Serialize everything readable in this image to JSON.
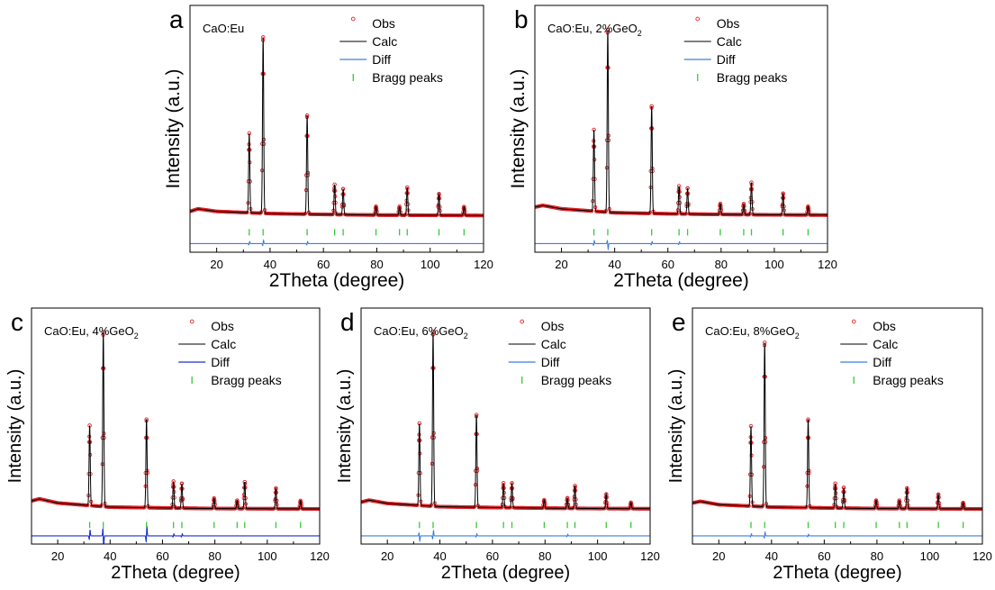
{
  "colors": {
    "obs": "#d9262a",
    "calc": "#000000",
    "diff_light": "#3b7fe0",
    "diff_dark": "#1a2fd6",
    "bragg": "#39c939"
  },
  "chart_data": [
    {
      "panel_label": "a",
      "type": "line",
      "sample": "CaO:Eu",
      "sample_suffix": "",
      "xlabel": "2Theta (degree)",
      "ylabel": "Intensity (a.u.)",
      "xlim": [
        10,
        120
      ],
      "x_ticks": [
        "20",
        "40",
        "60",
        "80",
        "100",
        "120"
      ],
      "y_ticks_shown": false,
      "legend": [
        "Obs",
        "Calc",
        "Diff",
        "Bragg peaks"
      ],
      "legend_position": "top-right",
      "diff_color": "diff_light",
      "background": [
        [
          10,
          4.0
        ],
        [
          13,
          5.2
        ],
        [
          20,
          4.0
        ],
        [
          40,
          3.0
        ],
        [
          60,
          2.6
        ],
        [
          80,
          2.3
        ],
        [
          100,
          2.2
        ],
        [
          120,
          2.1
        ]
      ],
      "peaks": [
        [
          32.2,
          37
        ],
        [
          37.4,
          82
        ],
        [
          53.9,
          46
        ],
        [
          64.2,
          14
        ],
        [
          67.4,
          12
        ],
        [
          79.7,
          4
        ],
        [
          88.5,
          4
        ],
        [
          91.4,
          13
        ],
        [
          103.3,
          10
        ],
        [
          112.7,
          4
        ]
      ],
      "bragg_positions": [
        32.2,
        37.4,
        53.9,
        64.2,
        67.4,
        79.7,
        88.5,
        91.4,
        103.3,
        112.7
      ],
      "diff_spikes": [
        [
          32.2,
          1
        ],
        [
          37.4,
          1.6
        ],
        [
          53.9,
          1
        ]
      ],
      "ylim": [
        -15,
        100
      ]
    },
    {
      "panel_label": "b",
      "type": "line",
      "sample": "CaO:Eu, 2%GeO",
      "sample_suffix": "2",
      "xlabel": "2Theta (degree)",
      "ylabel": "Intensity (a.u.)",
      "xlim": [
        10,
        120
      ],
      "x_ticks": [
        "20",
        "40",
        "60",
        "80",
        "100",
        "120"
      ],
      "y_ticks_shown": false,
      "legend": [
        "Obs",
        "Calc",
        "Diff",
        "Bragg peaks"
      ],
      "legend_position": "top-right",
      "diff_color": "diff_light",
      "background": [
        [
          10,
          6.0
        ],
        [
          13,
          6.8
        ],
        [
          20,
          5.2
        ],
        [
          40,
          3.4
        ],
        [
          60,
          2.9
        ],
        [
          80,
          2.6
        ],
        [
          100,
          2.4
        ],
        [
          120,
          2.3
        ]
      ],
      "peaks": [
        [
          32.2,
          38
        ],
        [
          37.4,
          85
        ],
        [
          53.9,
          50
        ],
        [
          64.2,
          13
        ],
        [
          67.4,
          12
        ],
        [
          79.7,
          5
        ],
        [
          88.5,
          5
        ],
        [
          91.4,
          15
        ],
        [
          103.3,
          10
        ],
        [
          112.7,
          4
        ]
      ],
      "bragg_positions": [
        32.2,
        37.4,
        53.9,
        64.2,
        67.4,
        79.7,
        88.5,
        91.4,
        103.3,
        112.7
      ],
      "diff_spikes": [
        [
          32.2,
          1.4
        ],
        [
          37.4,
          -2.5
        ],
        [
          53.9,
          1
        ],
        [
          64.2,
          0.8
        ]
      ],
      "ylim": [
        -15,
        100
      ]
    },
    {
      "panel_label": "c",
      "type": "line",
      "sample": "CaO:Eu, 4%GeO",
      "sample_suffix": "2",
      "xlabel": "2Theta (degree)",
      "ylabel": "Intensity (a.u.)",
      "xlim": [
        10,
        120
      ],
      "x_ticks": [
        "20",
        "40",
        "60",
        "80",
        "100",
        "120"
      ],
      "y_ticks_shown": false,
      "legend": [
        "Obs",
        "Calc",
        "Diff",
        "Bragg peaks"
      ],
      "legend_position": "top-right",
      "diff_color": "diff_dark",
      "background": [
        [
          10,
          6.0
        ],
        [
          13,
          7.0
        ],
        [
          20,
          5.0
        ],
        [
          40,
          3.0
        ],
        [
          60,
          2.6
        ],
        [
          80,
          2.3
        ],
        [
          100,
          2.2
        ],
        [
          120,
          2.1
        ]
      ],
      "peaks": [
        [
          32.2,
          39
        ],
        [
          37.4,
          85
        ],
        [
          53.9,
          43
        ],
        [
          64.2,
          13
        ],
        [
          67.4,
          12
        ],
        [
          79.7,
          5
        ],
        [
          88.5,
          4
        ],
        [
          91.4,
          13
        ],
        [
          103.3,
          10
        ],
        [
          112.7,
          4
        ]
      ],
      "bragg_positions": [
        32.2,
        37.4,
        53.9,
        64.2,
        67.4,
        79.7,
        88.5,
        91.4,
        103.3,
        112.7
      ],
      "diff_spikes": [
        [
          32.2,
          3
        ],
        [
          37.4,
          -6
        ],
        [
          53.9,
          5
        ],
        [
          64.2,
          1
        ],
        [
          67.4,
          1
        ]
      ],
      "ylim": [
        -15,
        100
      ]
    },
    {
      "panel_label": "d",
      "type": "line",
      "sample": "CaO:Eu, 6%GeO",
      "sample_suffix": "2",
      "xlabel": "2Theta (degree)",
      "ylabel": "Intensity (a.u.)",
      "xlim": [
        10,
        120
      ],
      "x_ticks": [
        "20",
        "40",
        "60",
        "80",
        "100",
        "120"
      ],
      "y_ticks_shown": false,
      "legend": [
        "Obs",
        "Calc",
        "Diff",
        "Bragg peaks"
      ],
      "legend_position": "top-right",
      "diff_color": "diff_light",
      "background": [
        [
          10,
          5.4
        ],
        [
          13,
          6.4
        ],
        [
          20,
          4.8
        ],
        [
          40,
          3.2
        ],
        [
          60,
          2.8
        ],
        [
          80,
          2.5
        ],
        [
          100,
          2.3
        ],
        [
          120,
          2.2
        ]
      ],
      "peaks": [
        [
          32.2,
          40
        ],
        [
          37.4,
          85
        ],
        [
          53.9,
          45
        ],
        [
          64.2,
          12
        ],
        [
          67.4,
          12
        ],
        [
          79.7,
          4
        ],
        [
          88.5,
          5
        ],
        [
          91.4,
          11
        ],
        [
          103.3,
          7
        ],
        [
          112.7,
          3
        ]
      ],
      "bragg_positions": [
        32.2,
        37.4,
        53.9,
        64.2,
        67.4,
        79.7,
        88.5,
        91.4,
        103.3,
        112.7
      ],
      "diff_spikes": [
        [
          32.2,
          -2.5
        ],
        [
          37.4,
          2.5
        ],
        [
          53.9,
          1
        ],
        [
          88.5,
          0.8
        ]
      ],
      "ylim": [
        -15,
        100
      ]
    },
    {
      "panel_label": "e",
      "type": "line",
      "sample": "CaO:Eu, 8%GeO",
      "sample_suffix": "2",
      "xlabel": "2Theta (degree)",
      "ylabel": "Intensity (a.u.)",
      "xlim": [
        10,
        120
      ],
      "x_ticks": [
        "20",
        "40",
        "60",
        "80",
        "100",
        "120"
      ],
      "y_ticks_shown": false,
      "legend": [
        "Obs",
        "Calc",
        "Diff",
        "Bragg peaks"
      ],
      "legend_position": "top-right",
      "diff_color": "diff_light",
      "background": [
        [
          10,
          5.0
        ],
        [
          13,
          5.8
        ],
        [
          20,
          4.2
        ],
        [
          40,
          3.0
        ],
        [
          60,
          2.6
        ],
        [
          80,
          2.3
        ],
        [
          100,
          2.2
        ],
        [
          120,
          2.1
        ]
      ],
      "peaks": [
        [
          32.2,
          39
        ],
        [
          37.4,
          80
        ],
        [
          53.9,
          43
        ],
        [
          64.2,
          12
        ],
        [
          67.4,
          10
        ],
        [
          79.7,
          4
        ],
        [
          88.5,
          4
        ],
        [
          91.4,
          10
        ],
        [
          103.3,
          7
        ],
        [
          112.7,
          3
        ]
      ],
      "bragg_positions": [
        32.2,
        37.4,
        53.9,
        64.2,
        67.4,
        79.7,
        88.5,
        91.4,
        103.3,
        112.7
      ],
      "diff_spikes": [
        [
          32.2,
          1
        ],
        [
          37.4,
          1.8
        ],
        [
          53.9,
          0.8
        ]
      ],
      "ylim": [
        -15,
        100
      ]
    }
  ]
}
